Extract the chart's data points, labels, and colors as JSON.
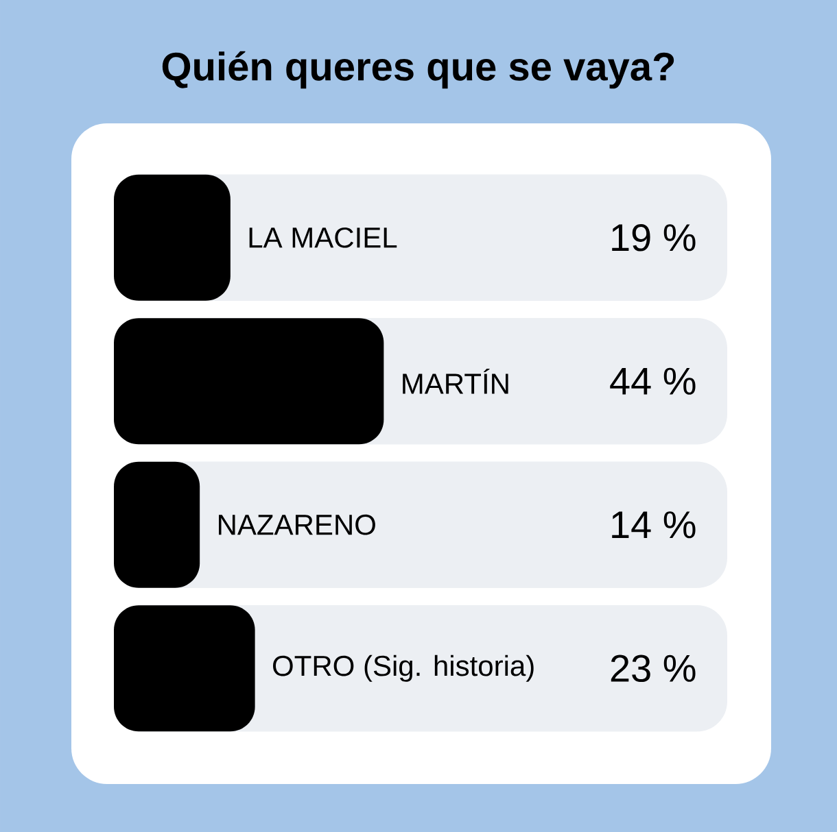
{
  "chart_data": {
    "type": "bar",
    "orientation": "horizontal",
    "title": "Quién queres que se vaya?",
    "categories": [
      "LA MACIEL",
      "MARTÍN",
      "NAZARENO",
      "OTRO (Sig. historia)"
    ],
    "values": [
      19,
      44,
      14,
      23
    ],
    "value_labels": [
      "19 %",
      "44 %",
      "14 %",
      "23 %"
    ],
    "color": "#000000",
    "xlim": [
      0,
      100
    ]
  }
}
